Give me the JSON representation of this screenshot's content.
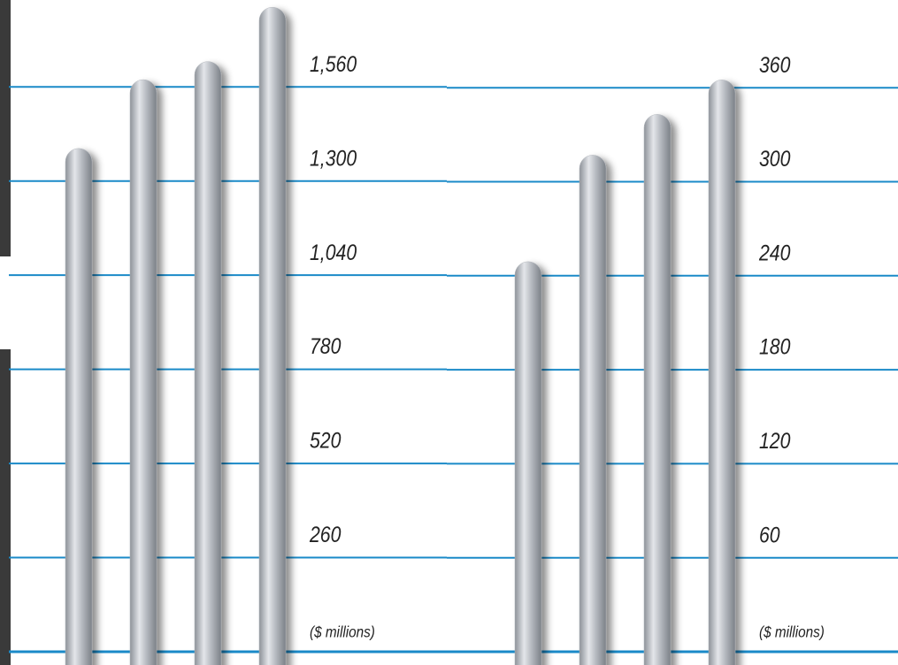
{
  "chart_data": [
    {
      "type": "bar",
      "axis_label": "($ millions)",
      "values": [
        1390,
        1580,
        1630,
        1780
      ],
      "color": "#b4b8be",
      "ylim": [
        0,
        1800
      ],
      "yticks": [
        {
          "value": 260,
          "label": "260"
        },
        {
          "value": 520,
          "label": "520"
        },
        {
          "value": 780,
          "label": "780"
        },
        {
          "value": 1040,
          "label": "1,040"
        },
        {
          "value": 1300,
          "label": "1,300"
        },
        {
          "value": 1560,
          "label": "1,560"
        }
      ],
      "grid": true,
      "grid_color": "#1a8ac8"
    },
    {
      "type": "bar",
      "axis_label": "($ millions)",
      "values": [
        249,
        317,
        343,
        365
      ],
      "color": "#b4b8be",
      "ylim": [
        0,
        416
      ],
      "yticks": [
        60,
        120,
        180,
        240,
        300,
        360
      ],
      "grid": true,
      "grid_color": "#1a8ac8"
    }
  ]
}
